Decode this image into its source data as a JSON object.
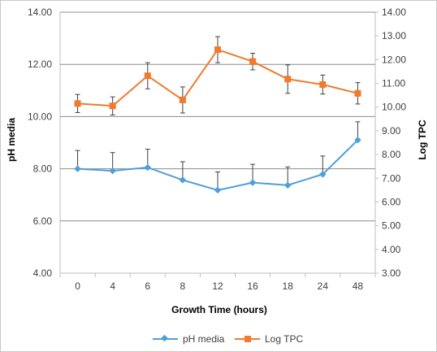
{
  "chart_data": {
    "type": "line",
    "categories": [
      "0",
      "4",
      "6",
      "8",
      "12",
      "16",
      "18",
      "24",
      "48"
    ],
    "xlabel": "Growth Time (hours)",
    "ylabel_left": "pH media",
    "ylabel_right": "Log TPC",
    "y_left": {
      "min": 4.0,
      "max": 14.0,
      "ticks": [
        "4.00",
        "6.00",
        "8.00",
        "10.00",
        "12.00",
        "14.00"
      ]
    },
    "y_right": {
      "min": 3.0,
      "max": 14.0,
      "ticks": [
        "3.00",
        "4.00",
        "5.00",
        "6.00",
        "7.00",
        "8.00",
        "9.00",
        "10.00",
        "11.00",
        "12.00",
        "13.00",
        "14.00"
      ]
    },
    "grid": true,
    "legend_position": "bottom",
    "series": [
      {
        "name": "pH media",
        "axis": "left",
        "color": "#4f9fd8",
        "marker": "diamond",
        "values": [
          8.0,
          7.92,
          8.05,
          7.57,
          7.18,
          7.47,
          7.37,
          7.79,
          9.1
        ],
        "error": [
          0.7,
          0.7,
          0.7,
          0.7,
          0.7,
          0.7,
          0.7,
          0.7,
          0.7
        ]
      },
      {
        "name": "Log TPC",
        "axis": "right",
        "color": "#f07a2d",
        "marker": "square",
        "values": [
          10.15,
          10.05,
          11.32,
          10.3,
          12.42,
          11.92,
          11.18,
          10.95,
          10.58
        ],
        "error": [
          0.38,
          0.38,
          0.55,
          0.55,
          0.55,
          0.35,
          0.6,
          0.4,
          0.45
        ]
      }
    ]
  }
}
